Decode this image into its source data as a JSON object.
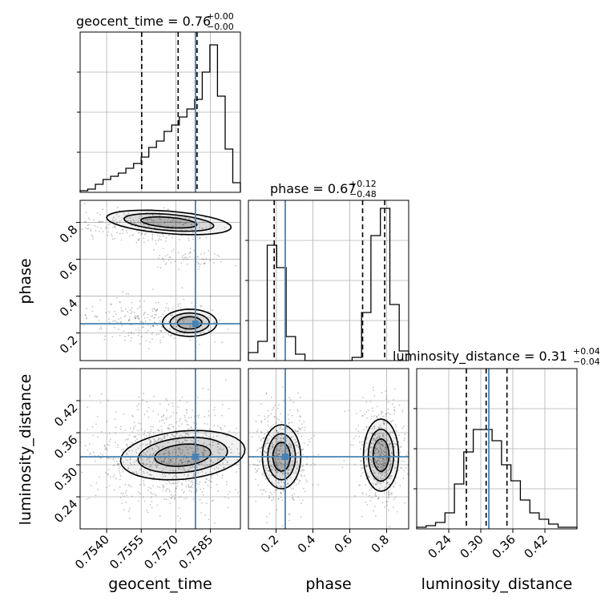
{
  "colors": {
    "truth": "#4682b4",
    "line": "#000000",
    "grid": "#b0b0b0",
    "points": "#555555"
  },
  "chart_data": {
    "type": "corner",
    "parameters": [
      {
        "name": "geocent_time",
        "title_main": "geocent_time = 0.76",
        "title_sup": "+0.00",
        "title_sub": "−0.00",
        "range": [
          0.75285,
          0.7598
        ],
        "ticks": [
          0.754,
          0.7555,
          0.757,
          0.7585
        ],
        "tick_labels": [
          "0.7540",
          "0.7555",
          "0.7570",
          "0.7585"
        ],
        "truth": 0.75785,
        "quantiles": [
          0.75552,
          0.7571,
          0.75792
        ]
      },
      {
        "name": "phase",
        "title_main": "phase = 0.67",
        "title_sup": "+0.12",
        "title_sub": "−0.48",
        "range": [
          0.05,
          0.92
        ],
        "ticks": [
          0.2,
          0.4,
          0.6,
          0.8
        ],
        "tick_labels": [
          "0.2",
          "0.4",
          "0.6",
          "0.8"
        ],
        "truth": 0.25,
        "quantiles": [
          0.19,
          0.67,
          0.79
        ]
      },
      {
        "name": "luminosity_distance",
        "title_main": "luminosity_distance = 0.31",
        "title_sup": "+0.04",
        "title_sub": "−0.04",
        "range": [
          0.18,
          0.48
        ],
        "ticks": [
          0.24,
          0.3,
          0.36,
          0.42
        ],
        "tick_labels": [
          "0.24",
          "0.30",
          "0.36",
          "0.42"
        ],
        "truth": 0.315,
        "quantiles": [
          0.273,
          0.31,
          0.349
        ]
      }
    ],
    "histograms": {
      "geocent_time": [
        0.01,
        0.02,
        0.05,
        0.08,
        0.1,
        0.12,
        0.15,
        0.18,
        0.22,
        0.28,
        0.32,
        0.38,
        0.42,
        0.47,
        0.52,
        0.58,
        0.75,
        0.92,
        0.6,
        0.27,
        0.06
      ],
      "phase": [
        0.05,
        0.12,
        0.72,
        0.58,
        0.15,
        0.04,
        0.0,
        0.0,
        0.0,
        0.0,
        0.0,
        0.02,
        0.3,
        0.78,
        0.95,
        0.35,
        0.06
      ],
      "luminosity_distance": [
        0.01,
        0.02,
        0.04,
        0.1,
        0.28,
        0.48,
        0.62,
        0.62,
        0.55,
        0.4,
        0.3,
        0.18,
        0.1,
        0.06,
        0.03,
        0.01,
        0.01
      ]
    },
    "grid": true
  }
}
